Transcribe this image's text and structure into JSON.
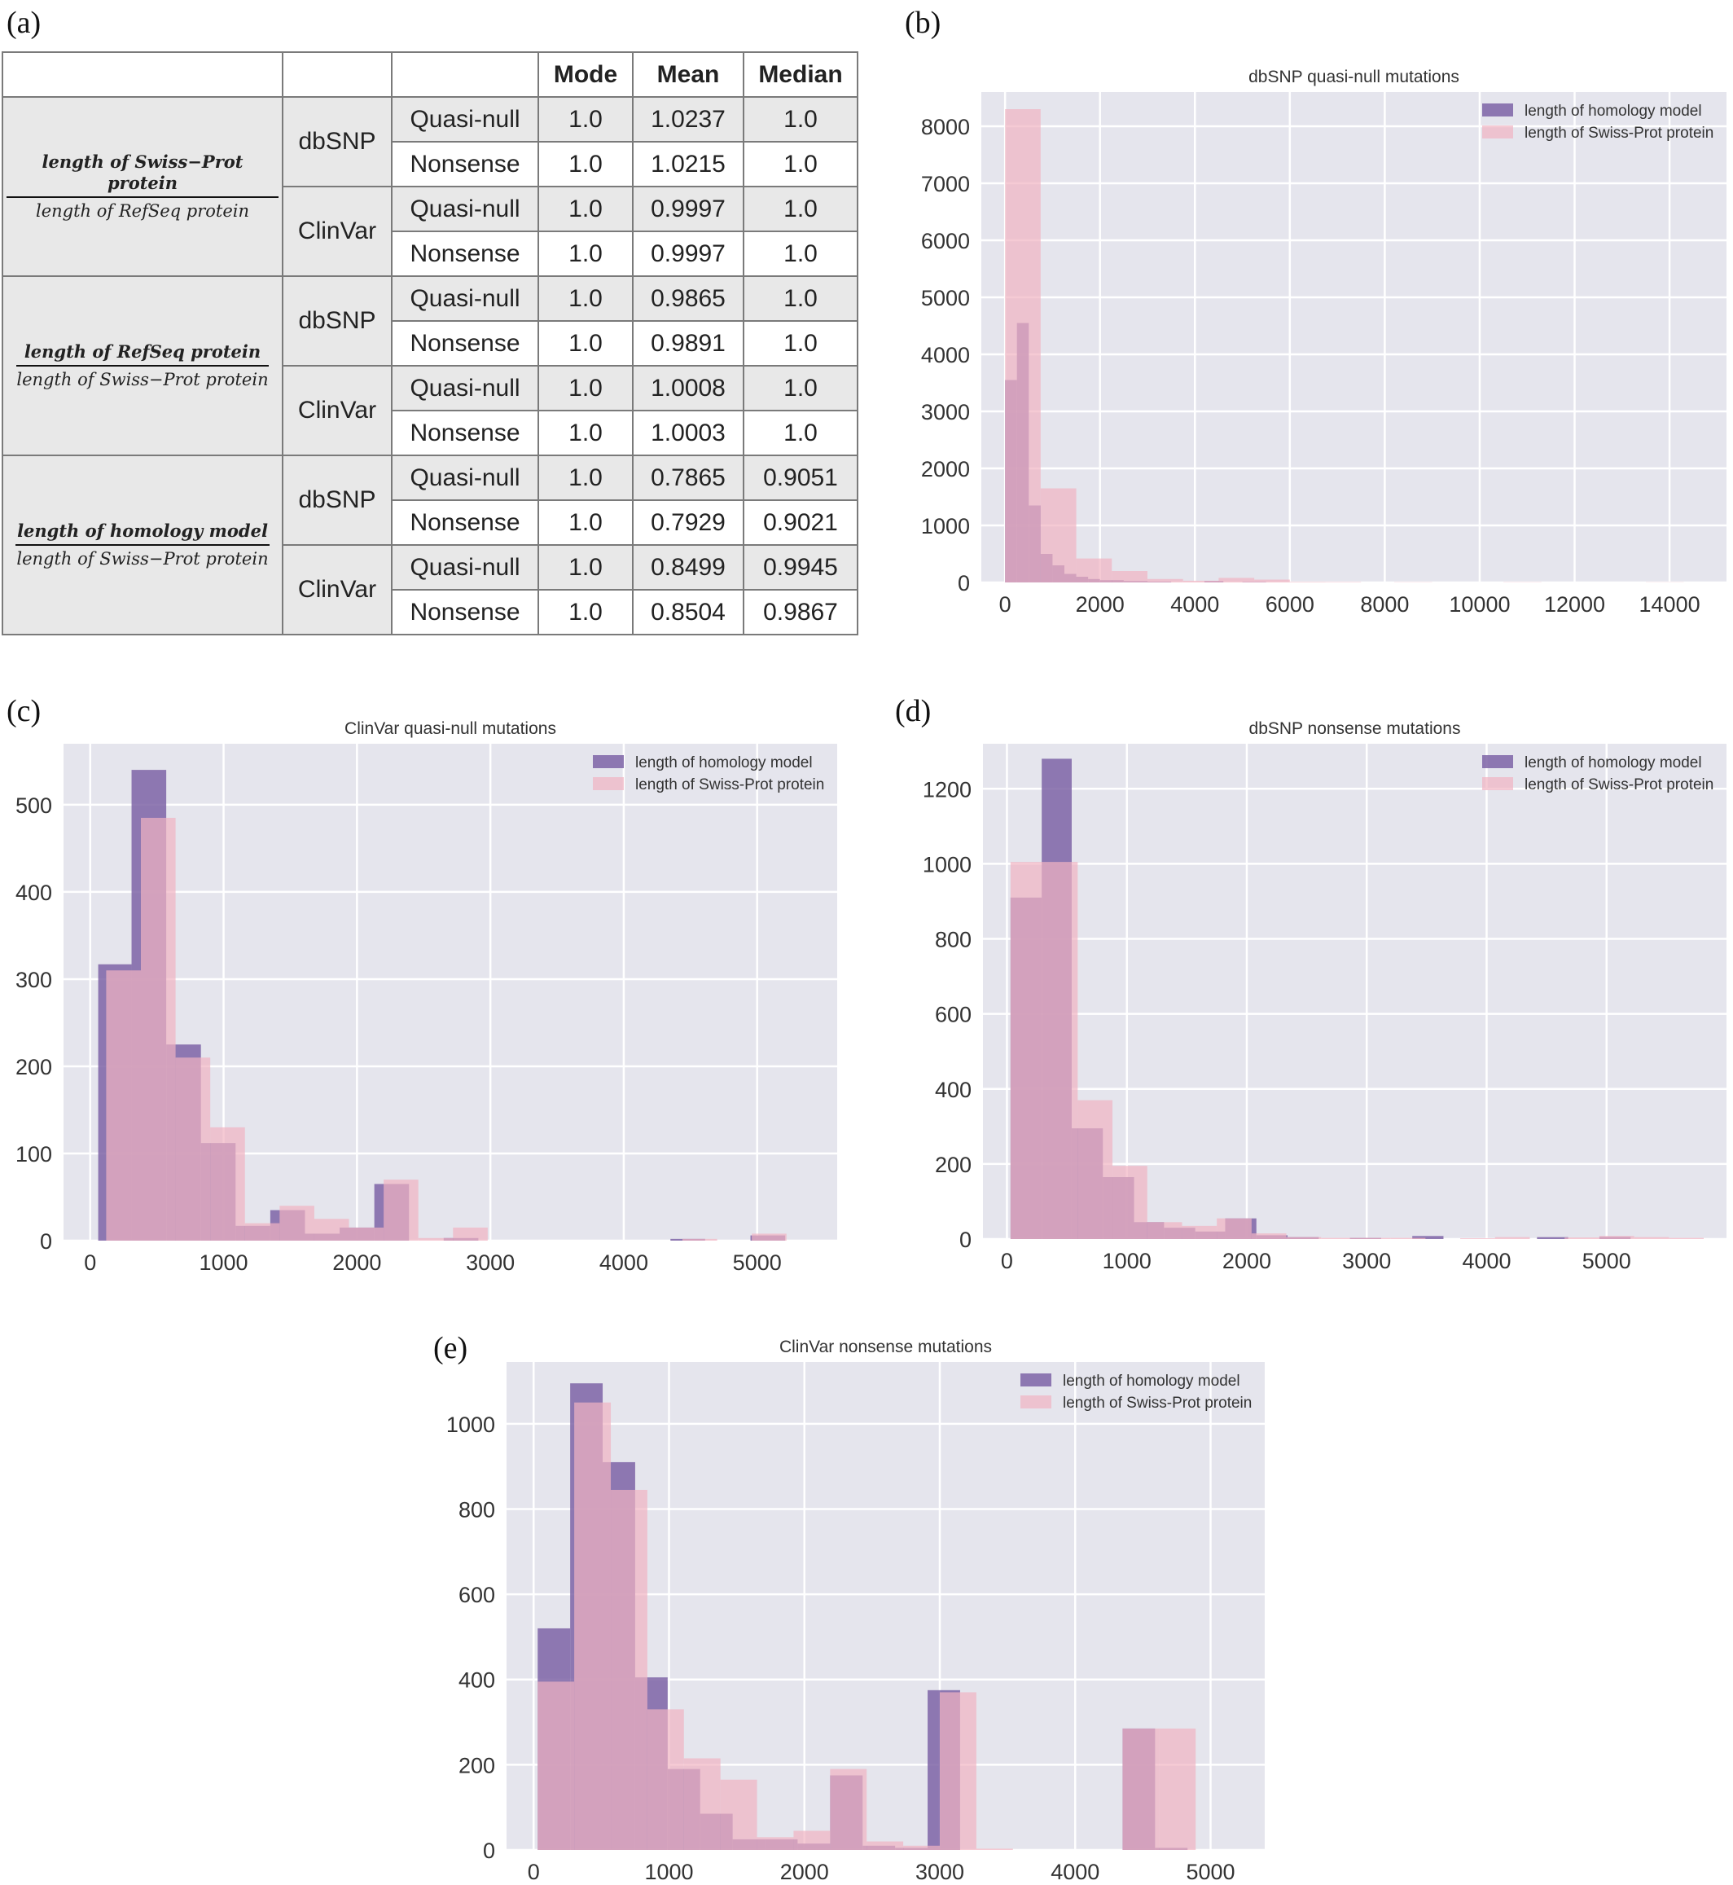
{
  "panel_labels": [
    "(a)",
    "(b)",
    "(c)",
    "(d)",
    "(e)"
  ],
  "table": {
    "headers": [
      "Mode",
      "Mean",
      "Median"
    ],
    "groups": [
      {
        "ratio_numerator": "length of Swiss−Prot protein",
        "ratio_denominator": "length of RefSeq protein",
        "sources": [
          {
            "name": "dbSNP",
            "rows": [
              {
                "type": "Quasi-null",
                "mode": "1.0",
                "mean": "1.0237",
                "median": "1.0"
              },
              {
                "type": "Nonsense",
                "mode": "1.0",
                "mean": "1.0215",
                "median": "1.0"
              }
            ]
          },
          {
            "name": "ClinVar",
            "rows": [
              {
                "type": "Quasi-null",
                "mode": "1.0",
                "mean": "0.9997",
                "median": "1.0"
              },
              {
                "type": "Nonsense",
                "mode": "1.0",
                "mean": "0.9997",
                "median": "1.0"
              }
            ]
          }
        ]
      },
      {
        "ratio_numerator": "length of RefSeq protein",
        "ratio_denominator": "length of Swiss−Prot protein",
        "sources": [
          {
            "name": "dbSNP",
            "rows": [
              {
                "type": "Quasi-null",
                "mode": "1.0",
                "mean": "0.9865",
                "median": "1.0"
              },
              {
                "type": "Nonsense",
                "mode": "1.0",
                "mean": "0.9891",
                "median": "1.0"
              }
            ]
          },
          {
            "name": "ClinVar",
            "rows": [
              {
                "type": "Quasi-null",
                "mode": "1.0",
                "mean": "1.0008",
                "median": "1.0"
              },
              {
                "type": "Nonsense",
                "mode": "1.0",
                "mean": "1.0003",
                "median": "1.0"
              }
            ]
          }
        ]
      },
      {
        "ratio_numerator": "length of homology model",
        "ratio_denominator": "length of Swiss−Prot protein",
        "sources": [
          {
            "name": "dbSNP",
            "rows": [
              {
                "type": "Quasi-null",
                "mode": "1.0",
                "mean": "0.7865",
                "median": "0.9051"
              },
              {
                "type": "Nonsense",
                "mode": "1.0",
                "mean": "0.7929",
                "median": "0.9021"
              }
            ]
          },
          {
            "name": "ClinVar",
            "rows": [
              {
                "type": "Quasi-null",
                "mode": "1.0",
                "mean": "0.8499",
                "median": "0.9945"
              },
              {
                "type": "Nonsense",
                "mode": "1.0",
                "mean": "0.8504",
                "median": "0.9867"
              }
            ]
          }
        ]
      }
    ]
  },
  "colors": {
    "homology": "#7e64a6",
    "swissprot": "#f1b3c2",
    "plot_bg": "#e5e5ed",
    "grid": "#ffffff"
  },
  "chart_data": [
    {
      "type": "bar",
      "title": "dbSNP quasi-null mutations",
      "xlim": [
        -500,
        15200
      ],
      "ylim": [
        0,
        8600
      ],
      "xticks": [
        0,
        2000,
        4000,
        6000,
        8000,
        10000,
        12000,
        14000
      ],
      "yticks": [
        0,
        1000,
        2000,
        3000,
        4000,
        5000,
        6000,
        7000,
        8000
      ],
      "series": [
        {
          "name": "length of homology model",
          "bins": [
            [
              0,
              250,
              3550
            ],
            [
              250,
              500,
              4550
            ],
            [
              500,
              750,
              1350
            ],
            [
              750,
              1000,
              500
            ],
            [
              1000,
              1250,
              300
            ],
            [
              1250,
              1500,
              150
            ],
            [
              1500,
              1750,
              100
            ],
            [
              1750,
              2000,
              60
            ],
            [
              2000,
              2500,
              40
            ],
            [
              2500,
              3000,
              25
            ],
            [
              3000,
              3500,
              15
            ],
            [
              4200,
              4600,
              25
            ],
            [
              5000,
              5500,
              10
            ]
          ]
        },
        {
          "name": "length of Swiss-Prot protein",
          "bins": [
            [
              0,
              750,
              8300
            ],
            [
              750,
              1500,
              1650
            ],
            [
              1500,
              2250,
              420
            ],
            [
              2250,
              3000,
              200
            ],
            [
              3000,
              3750,
              60
            ],
            [
              3750,
              4500,
              30
            ],
            [
              4500,
              5250,
              80
            ],
            [
              5250,
              6000,
              50
            ],
            [
              6000,
              6750,
              10
            ],
            [
              6750,
              7500,
              8
            ],
            [
              8200,
              9000,
              5
            ],
            [
              10500,
              11300,
              5
            ],
            [
              13500,
              14300,
              4
            ]
          ]
        }
      ]
    },
    {
      "type": "bar",
      "title": "ClinVar quasi-null mutations",
      "xlim": [
        -200,
        5600
      ],
      "ylim": [
        0,
        570
      ],
      "xticks": [
        0,
        1000,
        2000,
        3000,
        4000,
        5000
      ],
      "yticks": [
        0,
        100,
        200,
        300,
        400,
        500
      ],
      "series": [
        {
          "name": "length of homology model",
          "bins": [
            [
              60,
              310,
              317
            ],
            [
              310,
              570,
              540
            ],
            [
              570,
              830,
              225
            ],
            [
              830,
              1090,
              112
            ],
            [
              1090,
              1350,
              17
            ],
            [
              1350,
              1610,
              35
            ],
            [
              1610,
              1870,
              8
            ],
            [
              1870,
              2130,
              15
            ],
            [
              2130,
              2390,
              65
            ],
            [
              2650,
              2910,
              3
            ],
            [
              4350,
              4610,
              2
            ],
            [
              4950,
              5210,
              6
            ]
          ]
        },
        {
          "name": "length of Swiss-Prot protein",
          "bins": [
            [
              120,
              380,
              310
            ],
            [
              380,
              640,
              485
            ],
            [
              640,
              900,
              210
            ],
            [
              900,
              1160,
              130
            ],
            [
              1160,
              1420,
              20
            ],
            [
              1420,
              1680,
              40
            ],
            [
              1680,
              1940,
              25
            ],
            [
              1940,
              2200,
              15
            ],
            [
              2200,
              2460,
              70
            ],
            [
              2460,
              2720,
              3
            ],
            [
              2720,
              2980,
              15
            ],
            [
              4440,
              4700,
              2
            ],
            [
              4960,
              5220,
              8
            ]
          ]
        }
      ]
    },
    {
      "type": "bar",
      "title": "dbSNP nonsense mutations",
      "xlim": [
        -200,
        6000
      ],
      "ylim": [
        0,
        1320
      ],
      "xticks": [
        0,
        1000,
        2000,
        3000,
        4000,
        5000
      ],
      "yticks": [
        0,
        200,
        400,
        600,
        800,
        1000,
        1200
      ],
      "series": [
        {
          "name": "length of homology model",
          "bins": [
            [
              30,
              290,
              910
            ],
            [
              290,
              540,
              1280
            ],
            [
              540,
              800,
              295
            ],
            [
              800,
              1060,
              165
            ],
            [
              1060,
              1310,
              45
            ],
            [
              1310,
              1570,
              30
            ],
            [
              1570,
              1820,
              20
            ],
            [
              1820,
              2080,
              55
            ],
            [
              2080,
              2340,
              10
            ],
            [
              2340,
              2600,
              5
            ],
            [
              2860,
              3120,
              3
            ],
            [
              3380,
              3640,
              8
            ],
            [
              4420,
              4680,
              5
            ],
            [
              4940,
              5200,
              6
            ]
          ]
        },
        {
          "name": "length of Swiss-Prot protein",
          "bins": [
            [
              30,
              590,
              1005
            ],
            [
              590,
              880,
              370
            ],
            [
              880,
              1170,
              195
            ],
            [
              1170,
              1460,
              45
            ],
            [
              1460,
              1750,
              35
            ],
            [
              1750,
              2040,
              55
            ],
            [
              2040,
              2330,
              15
            ],
            [
              2330,
              2620,
              5
            ],
            [
              2620,
              2910,
              3
            ],
            [
              2910,
              3200,
              3
            ],
            [
              3200,
              3490,
              3
            ],
            [
              3780,
              4070,
              2
            ],
            [
              4070,
              4360,
              5
            ],
            [
              4650,
              4940,
              4
            ],
            [
              4940,
              5230,
              8
            ],
            [
              5230,
              5520,
              5
            ],
            [
              5520,
              5810,
              3
            ]
          ]
        }
      ]
    },
    {
      "type": "bar",
      "title": "ClinVar nonsense mutations",
      "xlim": [
        -200,
        5400
      ],
      "ylim": [
        0,
        1145
      ],
      "xticks": [
        0,
        1000,
        2000,
        3000,
        4000,
        5000
      ],
      "yticks": [
        0,
        200,
        400,
        600,
        800,
        1000
      ],
      "series": [
        {
          "name": "length of homology model",
          "bins": [
            [
              30,
              270,
              520
            ],
            [
              270,
              510,
              1095
            ],
            [
              510,
              750,
              910
            ],
            [
              750,
              990,
              405
            ],
            [
              990,
              1230,
              190
            ],
            [
              1230,
              1470,
              85
            ],
            [
              1470,
              1710,
              25
            ],
            [
              1710,
              1950,
              25
            ],
            [
              1950,
              2190,
              15
            ],
            [
              2190,
              2430,
              175
            ],
            [
              2430,
              2670,
              10
            ],
            [
              2670,
              2910,
              5
            ],
            [
              2910,
              3150,
              375
            ],
            [
              4350,
              4590,
              285
            ],
            [
              4590,
              4830,
              5
            ]
          ]
        },
        {
          "name": "length of Swiss-Prot protein",
          "bins": [
            [
              30,
              300,
              395
            ],
            [
              300,
              570,
              1050
            ],
            [
              570,
              840,
              845
            ],
            [
              840,
              1110,
              330
            ],
            [
              1110,
              1380,
              215
            ],
            [
              1380,
              1650,
              165
            ],
            [
              1650,
              1920,
              30
            ],
            [
              1920,
              2190,
              45
            ],
            [
              2190,
              2460,
              190
            ],
            [
              2460,
              2730,
              20
            ],
            [
              2730,
              3000,
              10
            ],
            [
              3000,
              3270,
              370
            ],
            [
              3270,
              3540,
              3
            ],
            [
              4350,
              4620,
              285
            ],
            [
              4620,
              4890,
              285
            ]
          ]
        }
      ]
    }
  ]
}
